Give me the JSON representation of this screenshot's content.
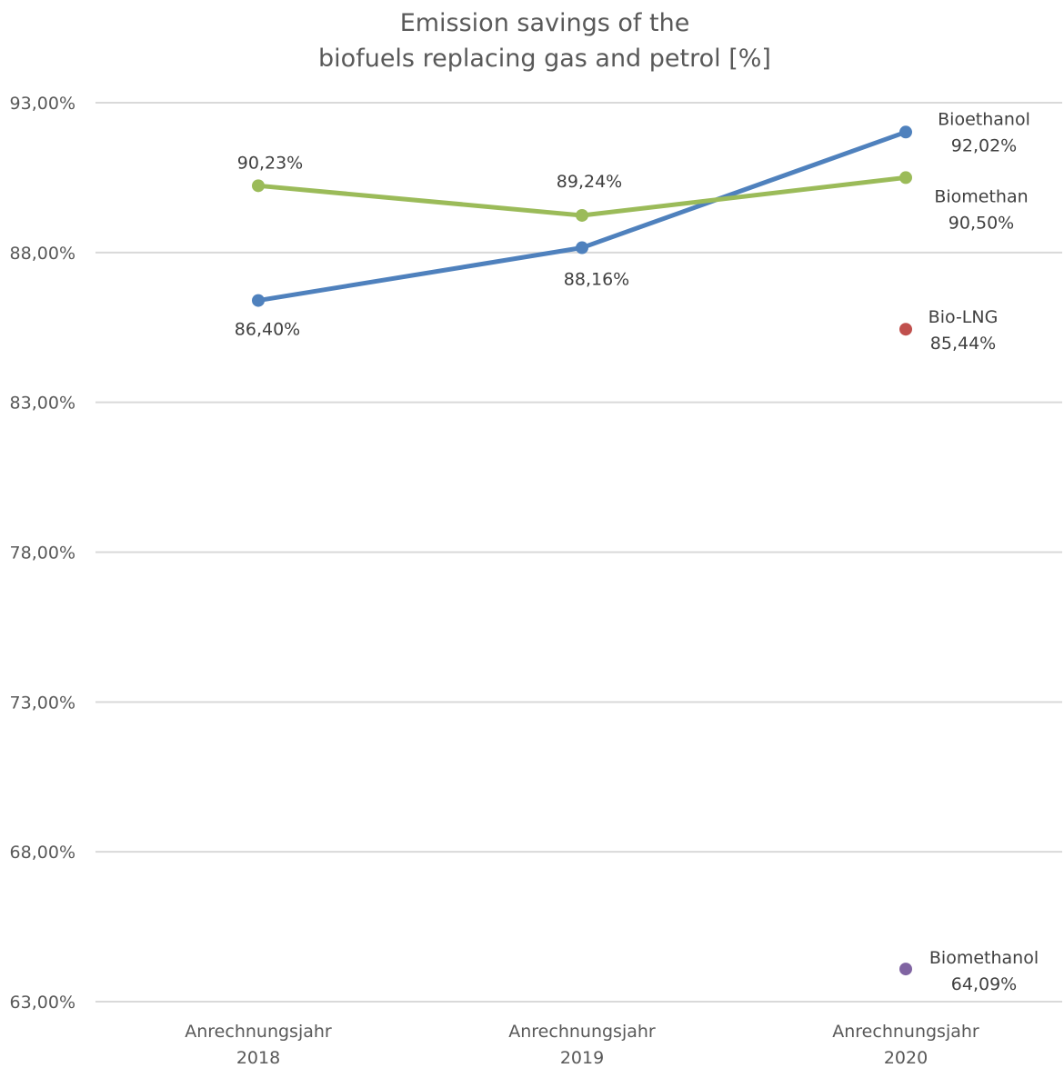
{
  "chart_data": {
    "type": "line",
    "title_lines": [
      "Emission savings of the",
      "biofuels replacing gas and petrol [%]"
    ],
    "categories": [
      [
        "Anrechnungsjahr",
        "2018"
      ],
      [
        "Anrechnungsjahr",
        "2019"
      ],
      [
        "Anrechnungsjahr",
        "2020"
      ]
    ],
    "ylim": [
      63,
      93
    ],
    "yticks": [
      {
        "value": 63,
        "label": "63,00%"
      },
      {
        "value": 68,
        "label": "68,00%"
      },
      {
        "value": 73,
        "label": "73,00%"
      },
      {
        "value": 78,
        "label": "78,00%"
      },
      {
        "value": 83,
        "label": "83,00%"
      },
      {
        "value": 88,
        "label": "88,00%"
      },
      {
        "value": 93,
        "label": "93,00%"
      }
    ],
    "grid": true,
    "series": [
      {
        "name": "Bioethanol",
        "color": "#4f81bd",
        "values": [
          86.4,
          88.16,
          92.02
        ],
        "labels": [
          "86,40%",
          "88,16%",
          "92,02%"
        ]
      },
      {
        "name": "Biomethan",
        "color": "#9bbb59",
        "values": [
          90.23,
          89.24,
          90.5
        ],
        "labels": [
          "90,23%",
          "89,24%",
          "90,50%"
        ]
      },
      {
        "name": "Bio-LNG",
        "color": "#c0504d",
        "values": [
          null,
          null,
          85.44
        ],
        "labels": [
          "",
          "",
          "85,44%"
        ]
      },
      {
        "name": "Biomethanol",
        "color": "#8064a2",
        "values": [
          null,
          null,
          64.09
        ],
        "labels": [
          "",
          "",
          "64,09%"
        ]
      }
    ]
  }
}
